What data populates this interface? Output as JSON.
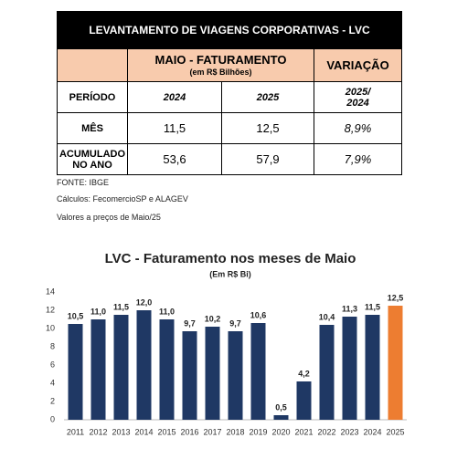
{
  "table": {
    "title": "LEVANTAMENTO DE VIAGENS CORPORATIVAS - LVC",
    "group_header": "MAIO - FATURAMENTO",
    "group_subheader": "(em R$ Bilhões)",
    "variation_header": "VARIAÇÃO",
    "rows": [
      [
        "PERÍODO",
        "2024",
        "2025",
        "2025/\n2024"
      ],
      [
        "MÊS",
        "11,5",
        "12,5",
        "8,9%"
      ],
      [
        "ACUMULADO\nNO ANO",
        "53,6",
        "57,9",
        "7,9%"
      ]
    ]
  },
  "notes": [
    "FONTE: IBGE",
    "Cálculos: FecomercioSP e ALAGEV",
    "Valores a preços de Maio/25"
  ],
  "chart_data": {
    "type": "bar",
    "title": "LVC - Faturamento nos meses de Maio",
    "subtitle": "(Em R$ Bi)",
    "categories": [
      "2011",
      "2012",
      "2013",
      "2014",
      "2015",
      "2016",
      "2017",
      "2018",
      "2019",
      "2020",
      "2021",
      "2022",
      "2023",
      "2024",
      "2025"
    ],
    "values": [
      10.5,
      11.0,
      11.5,
      12.0,
      11.0,
      9.7,
      10.2,
      9.7,
      10.6,
      0.5,
      4.2,
      10.4,
      11.3,
      11.5,
      12.5
    ],
    "value_labels": [
      "10,5",
      "11,0",
      "11,5",
      "12,0",
      "11,0",
      "9,7",
      "10,2",
      "9,7",
      "10,6",
      "0,5",
      "4,2",
      "10,4",
      "11,3",
      "11,5",
      "12,5"
    ],
    "colors": [
      "#1f3864",
      "#1f3864",
      "#1f3864",
      "#1f3864",
      "#1f3864",
      "#1f3864",
      "#1f3864",
      "#1f3864",
      "#1f3864",
      "#1f3864",
      "#1f3864",
      "#1f3864",
      "#1f3864",
      "#1f3864",
      "#ed7d31"
    ],
    "ylim": [
      0,
      14
    ],
    "yticks": [
      0,
      2,
      4,
      6,
      8,
      10,
      12,
      14
    ],
    "grid": false
  }
}
